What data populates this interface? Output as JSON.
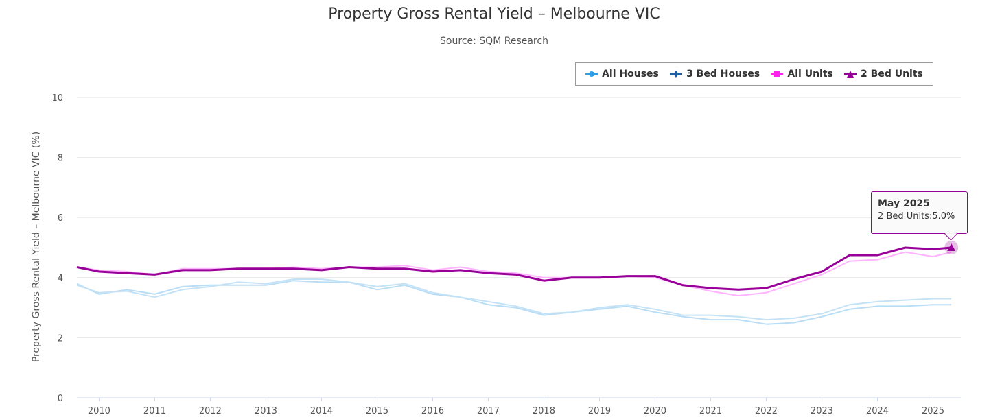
{
  "chart_data": {
    "type": "line",
    "title": "Property Gross Rental Yield – Melbourne VIC",
    "subtitle": "Source: SQM Research",
    "ylabel": "Property Gross Rental Yield – Melbourne VIC (%)",
    "xlabel": "",
    "ylim": [
      0,
      10
    ],
    "y_ticks": [
      "0",
      "2",
      "4",
      "6",
      "8",
      "10"
    ],
    "x_ticks": [
      "2010",
      "2011",
      "2012",
      "2013",
      "2014",
      "2015",
      "2016",
      "2017",
      "2018",
      "2019",
      "2020",
      "2021",
      "2022",
      "2023",
      "2024",
      "2025"
    ],
    "xlim": [
      2009.6,
      2025.5
    ],
    "grid": "horizontal",
    "legend_position": "top-right",
    "x": [
      2009.6,
      2010.0,
      2010.5,
      2011.0,
      2011.5,
      2012.0,
      2012.5,
      2013.0,
      2013.5,
      2014.0,
      2014.5,
      2015.0,
      2015.5,
      2016.0,
      2016.5,
      2017.0,
      2017.5,
      2018.0,
      2018.5,
      2019.0,
      2019.5,
      2020.0,
      2020.5,
      2021.0,
      2021.5,
      2022.0,
      2022.5,
      2023.0,
      2023.5,
      2024.0,
      2024.5,
      2025.0,
      2025.33
    ],
    "series": [
      {
        "name": "All Houses",
        "color": "#b9ddf5",
        "marker": "circle",
        "legend_color": "#2f9fe8",
        "values": [
          3.8,
          3.45,
          3.6,
          3.45,
          3.7,
          3.75,
          3.75,
          3.75,
          3.9,
          3.85,
          3.85,
          3.6,
          3.75,
          3.45,
          3.35,
          3.1,
          3.0,
          2.75,
          2.85,
          2.95,
          3.05,
          2.85,
          2.7,
          2.6,
          2.6,
          2.45,
          2.5,
          2.7,
          2.95,
          3.05,
          3.05,
          3.1,
          3.1
        ]
      },
      {
        "name": "3 Bed Houses",
        "color": "#c4e2f6",
        "marker": "diamond",
        "legend_color": "#1f5fa6",
        "values": [
          3.75,
          3.5,
          3.55,
          3.35,
          3.6,
          3.7,
          3.85,
          3.8,
          3.95,
          3.95,
          3.85,
          3.7,
          3.8,
          3.5,
          3.35,
          3.2,
          3.05,
          2.8,
          2.85,
          3.0,
          3.1,
          2.95,
          2.75,
          2.75,
          2.7,
          2.6,
          2.65,
          2.8,
          3.1,
          3.2,
          3.25,
          3.3,
          3.3
        ]
      },
      {
        "name": "All Units",
        "color": "#ffb3ff",
        "marker": "square",
        "legend_color": "#ff22ee",
        "values": [
          4.35,
          4.25,
          4.2,
          4.1,
          4.3,
          4.3,
          4.3,
          4.3,
          4.35,
          4.3,
          4.35,
          4.35,
          4.4,
          4.25,
          4.35,
          4.2,
          4.15,
          4.0,
          4.0,
          4.0,
          4.05,
          4.0,
          3.75,
          3.55,
          3.4,
          3.5,
          3.8,
          4.1,
          4.55,
          4.6,
          4.85,
          4.7,
          4.85
        ]
      },
      {
        "name": "2 Bed Units",
        "color": "#990099",
        "marker": "triangle",
        "legend_color": "#990099",
        "values": [
          4.35,
          4.2,
          4.15,
          4.1,
          4.25,
          4.25,
          4.3,
          4.3,
          4.3,
          4.25,
          4.35,
          4.3,
          4.3,
          4.2,
          4.25,
          4.15,
          4.1,
          3.9,
          4.0,
          4.0,
          4.05,
          4.05,
          3.75,
          3.65,
          3.6,
          3.65,
          3.95,
          4.2,
          4.75,
          4.75,
          5.0,
          4.95,
          5.0
        ]
      }
    ],
    "tooltip": {
      "title": "May 2025",
      "series": "2 Bed Units",
      "value_text": "2 Bed Units:5.0%"
    }
  }
}
